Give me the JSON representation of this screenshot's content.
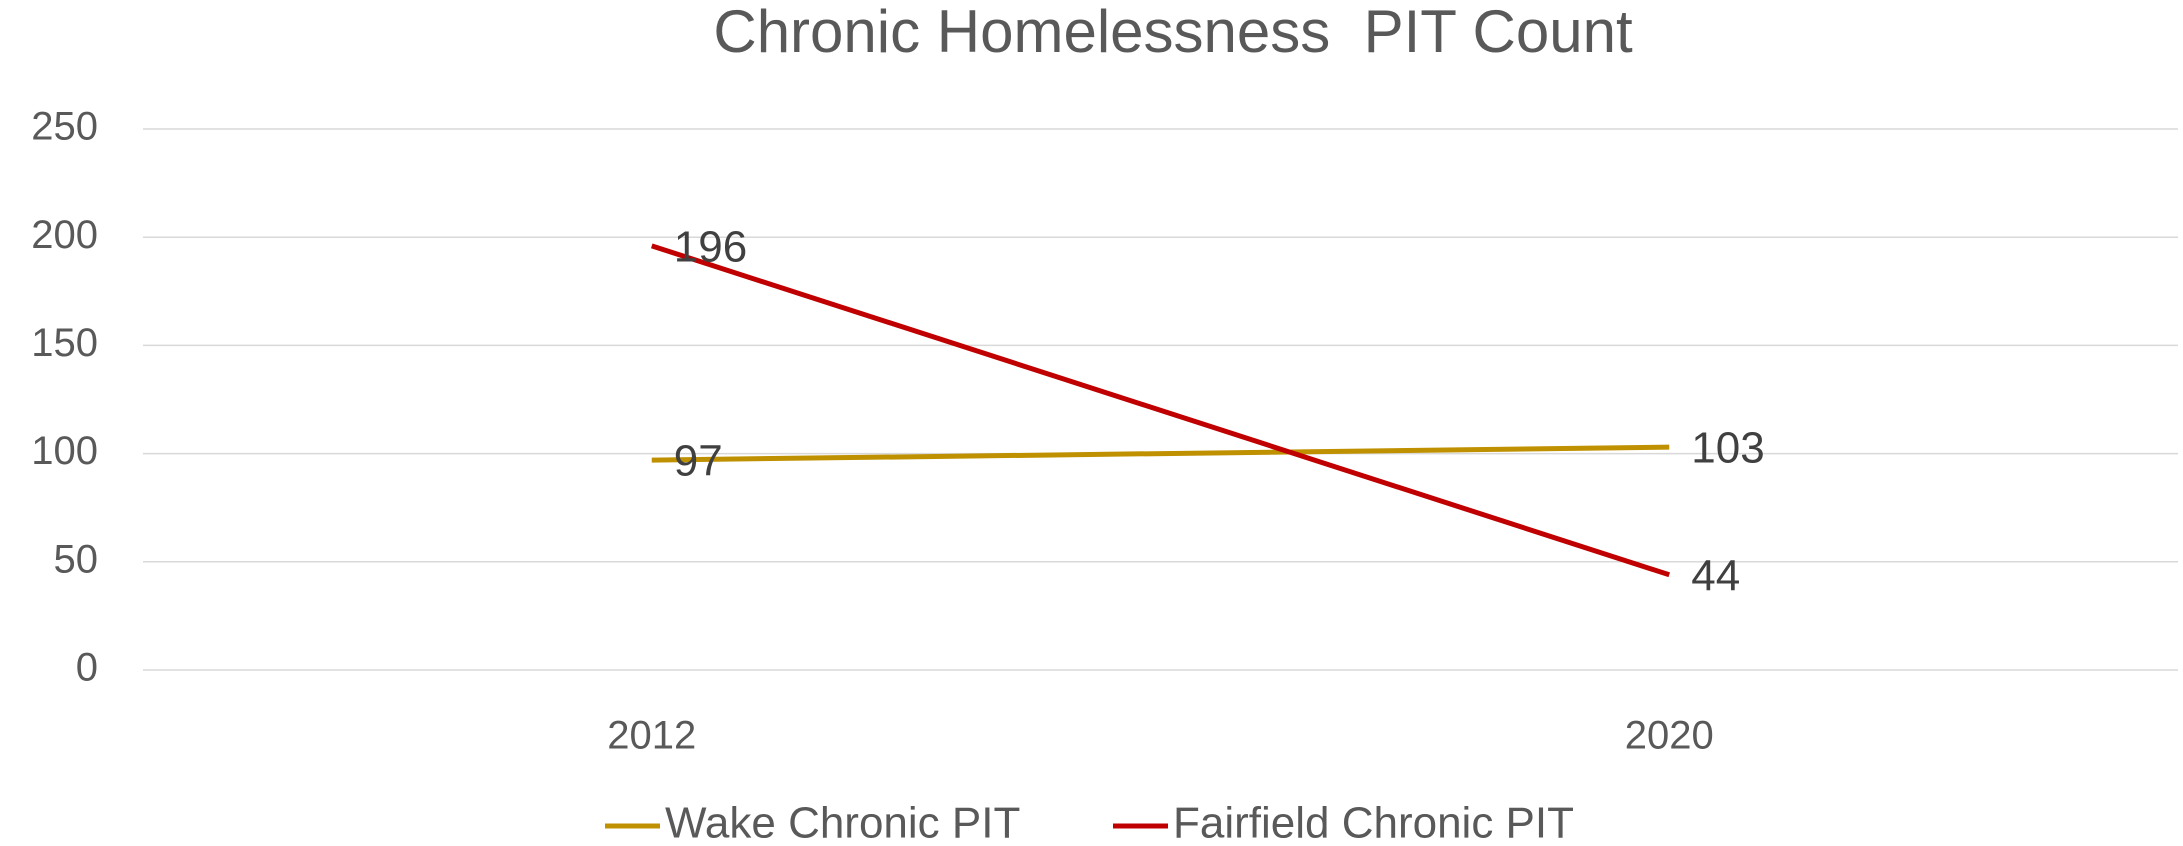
{
  "chart_data": {
    "type": "line",
    "title": "Chronic Homelessness  PIT Count",
    "categories": [
      "2012",
      "2020"
    ],
    "series": [
      {
        "name": "Wake Chronic PIT",
        "color": "#bf9000",
        "values": [
          97,
          103
        ]
      },
      {
        "name": "Fairfield Chronic PIT",
        "color": "#c00000",
        "values": [
          196,
          44
        ]
      }
    ],
    "ylim": [
      0,
      250
    ],
    "yticks": [
      0,
      50,
      100,
      150,
      200,
      250
    ],
    "grid": true,
    "legend": "bottom"
  }
}
